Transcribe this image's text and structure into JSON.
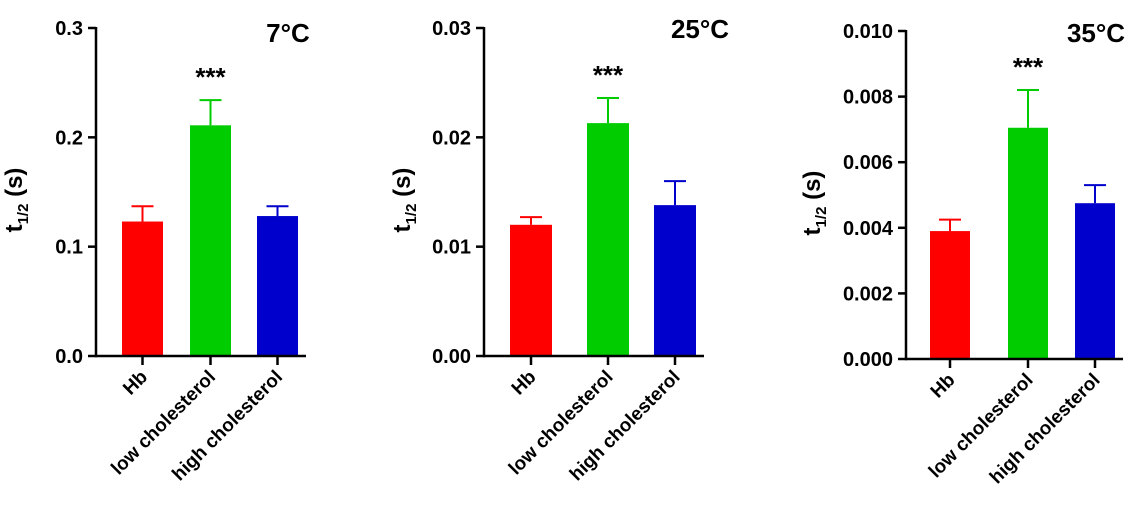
{
  "chart_data": [
    {
      "type": "bar",
      "title": "7°C",
      "ylabel_main": "t",
      "ylabel_sub": "1/2",
      "ylabel_unit": " (s)",
      "categories": [
        "Hb",
        "low cholesterol",
        "high cholesterol"
      ],
      "values": [
        0.123,
        0.211,
        0.128
      ],
      "errors": [
        0.014,
        0.023,
        0.009
      ],
      "colors": [
        "#ff0000",
        "#00cc00",
        "#0000cc"
      ],
      "ylim": [
        0,
        0.3
      ],
      "yticks": [
        "0.0",
        "0.1",
        "0.2",
        "0.3"
      ],
      "annotations": [
        {
          "category": "low cholesterol",
          "text": "***"
        }
      ]
    },
    {
      "type": "bar",
      "title": "25°C",
      "ylabel_main": "t",
      "ylabel_sub": "1/2",
      "ylabel_unit": " (s)",
      "categories": [
        "Hb",
        "low cholesterol",
        "high cholesterol"
      ],
      "values": [
        0.012,
        0.0213,
        0.0138
      ],
      "errors": [
        0.0007,
        0.0023,
        0.0022
      ],
      "colors": [
        "#ff0000",
        "#00cc00",
        "#0000cc"
      ],
      "ylim": [
        0,
        0.03
      ],
      "yticks": [
        "0.00",
        "0.01",
        "0.02",
        "0.03"
      ],
      "annotations": [
        {
          "category": "low cholesterol",
          "text": "***"
        }
      ]
    },
    {
      "type": "bar",
      "title": "35°C",
      "ylabel_main": "t",
      "ylabel_sub": "1/2",
      "ylabel_unit": " (s)",
      "categories": [
        "Hb",
        "low cholesterol",
        "high cholesterol"
      ],
      "values": [
        0.0039,
        0.00705,
        0.00475
      ],
      "errors": [
        0.00035,
        0.00115,
        0.00055
      ],
      "colors": [
        "#ff0000",
        "#00cc00",
        "#0000cc"
      ],
      "ylim": [
        0,
        0.01
      ],
      "yticks": [
        "0.000",
        "0.002",
        "0.004",
        "0.006",
        "0.008",
        "0.010"
      ],
      "annotations": [
        {
          "category": "low cholesterol",
          "text": "***"
        }
      ]
    }
  ]
}
